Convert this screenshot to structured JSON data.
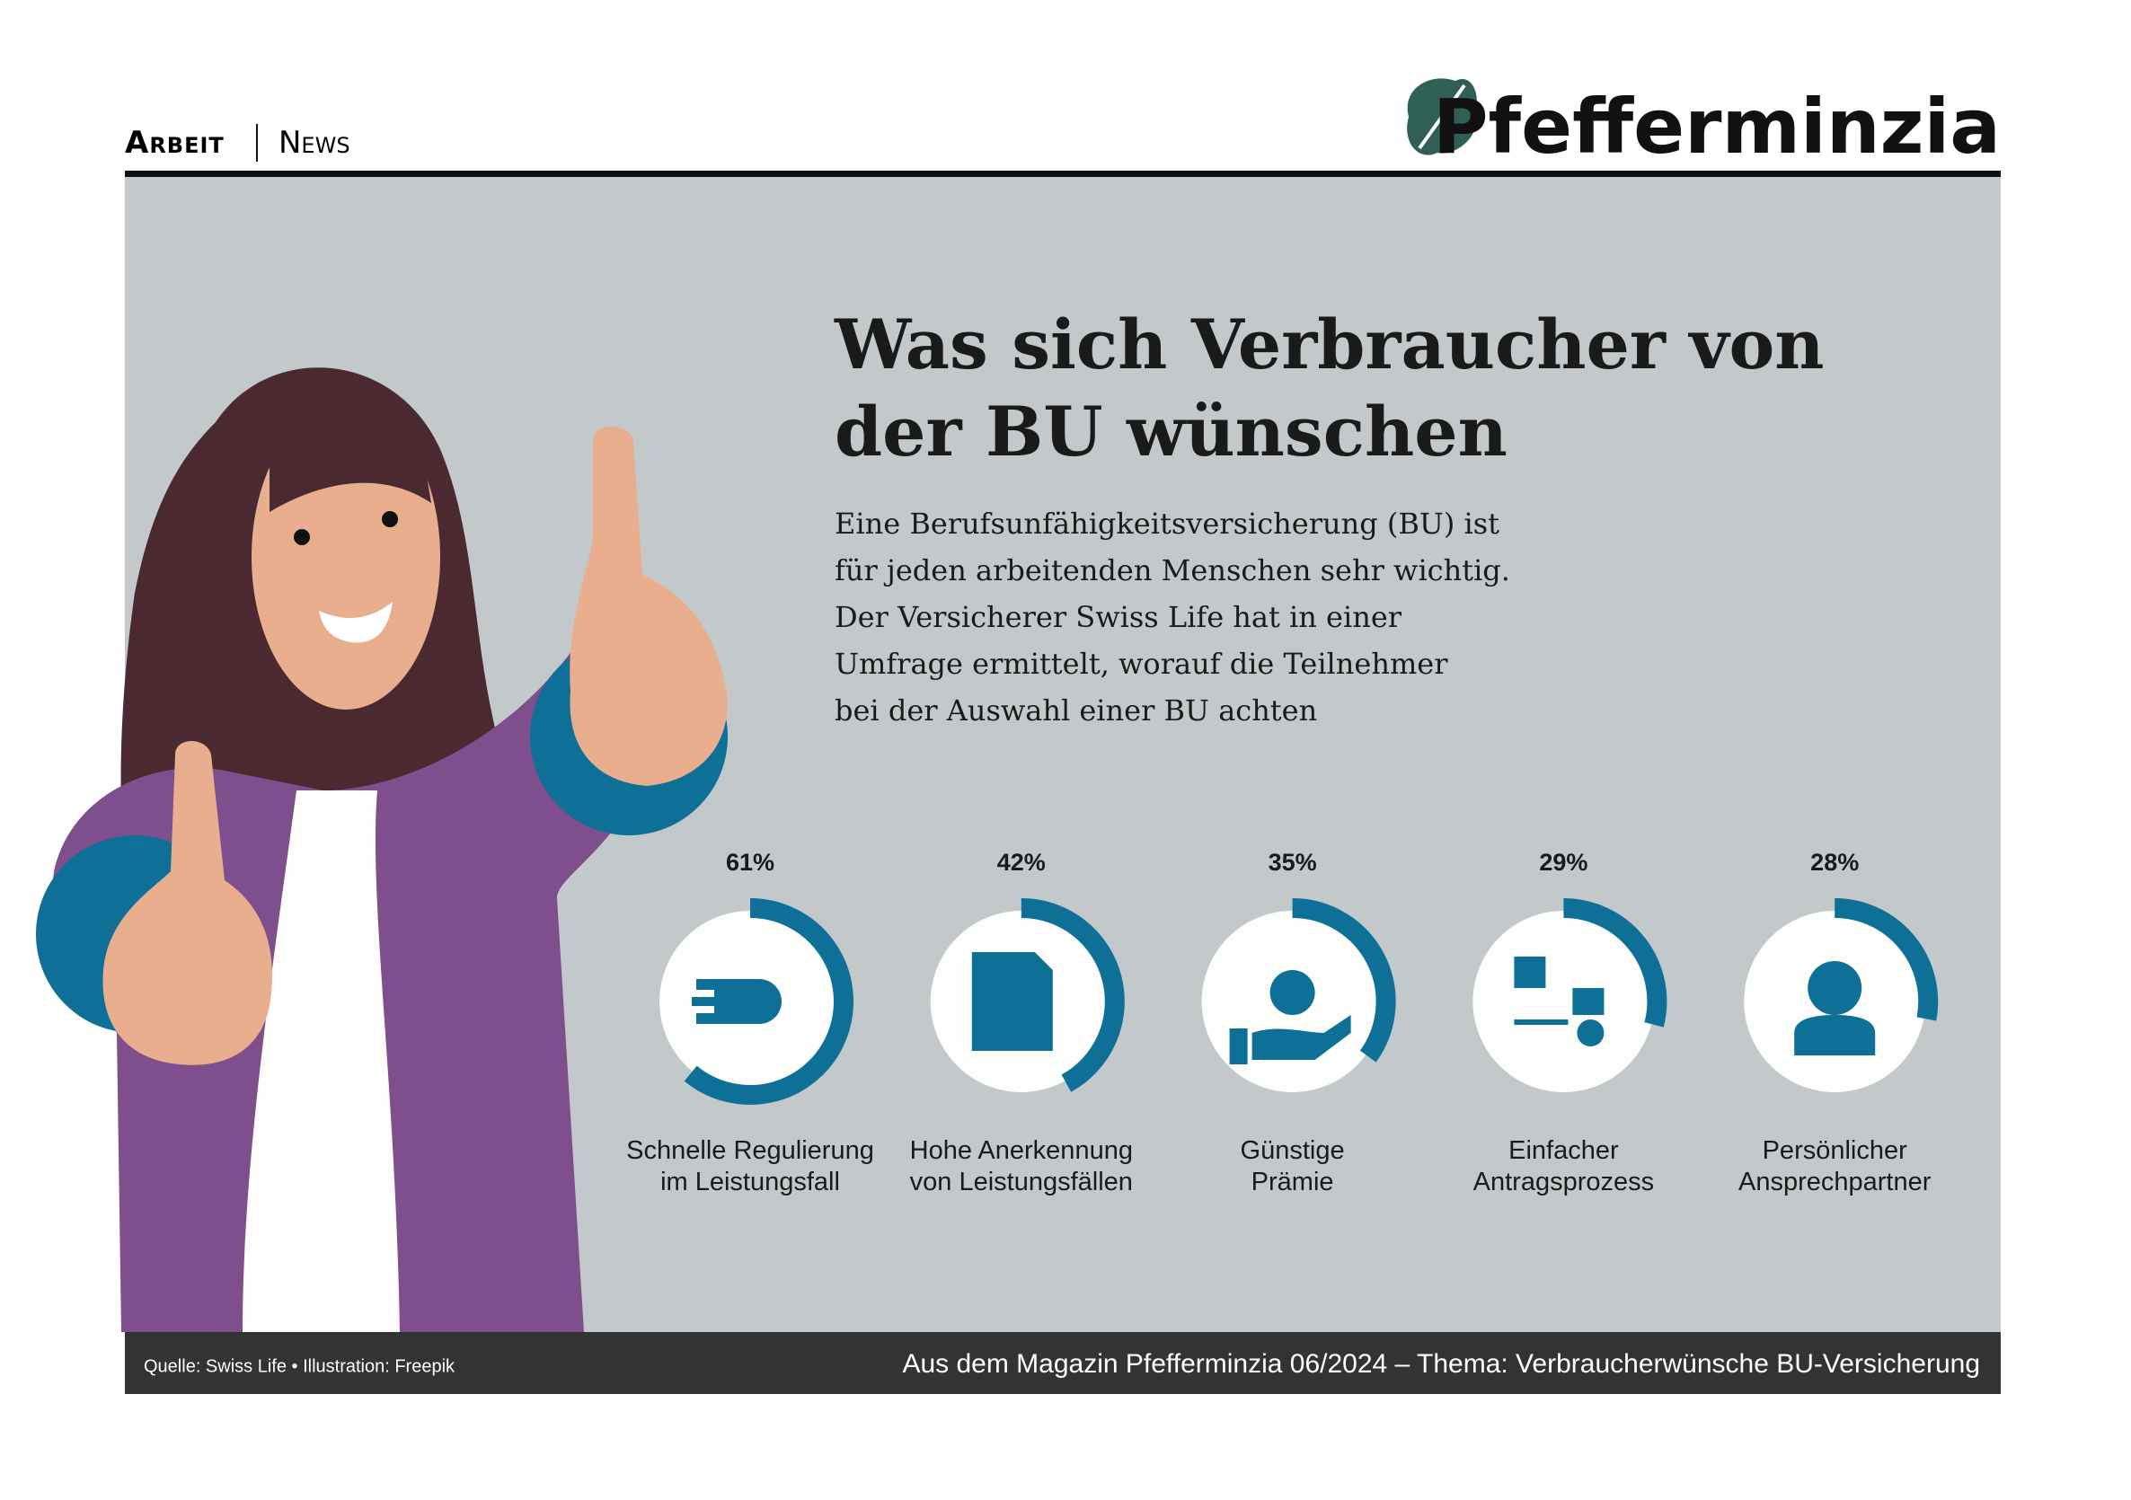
{
  "header": {
    "section": "Arbeit",
    "subsection": "News",
    "brand": "Pfefferminzia"
  },
  "chart_data": {
    "type": "donut",
    "title": [
      "Was sich Verbraucher von",
      "der BU wünschen"
    ],
    "subtitle": [
      "Eine Berufsunfähigkeitsversicherung (BU) ist",
      "für jeden arbeitenden Menschen sehr wichtig.",
      "Der Versicherer Swiss Life hat in einer",
      "Umfrage ermittelt, worauf die Teilnehmer",
      "bei der Auswahl einer BU achten"
    ],
    "categories": [
      "Schnelle Regulierung\nim Leistungsfall",
      "Hohe Anerkennung\nvon Leistungsfällen",
      "Günstige\nPrämie",
      "Einfacher\nAntragsprozess",
      "Persönlicher\nAnsprechpartner"
    ],
    "values": [
      61,
      42,
      35,
      29,
      28
    ],
    "value_labels": [
      "61%",
      "42%",
      "35%",
      "29%",
      "28%"
    ],
    "ylim": [
      0,
      100
    ],
    "color": "#0e6f97"
  },
  "footer": {
    "source": "Quelle: Swiss Life • Illustration: Freepik",
    "magazine": "Aus dem Magazin Pfefferminzia 06/2024 – Thema: Verbraucherwünsche BU-Versicherung"
  }
}
